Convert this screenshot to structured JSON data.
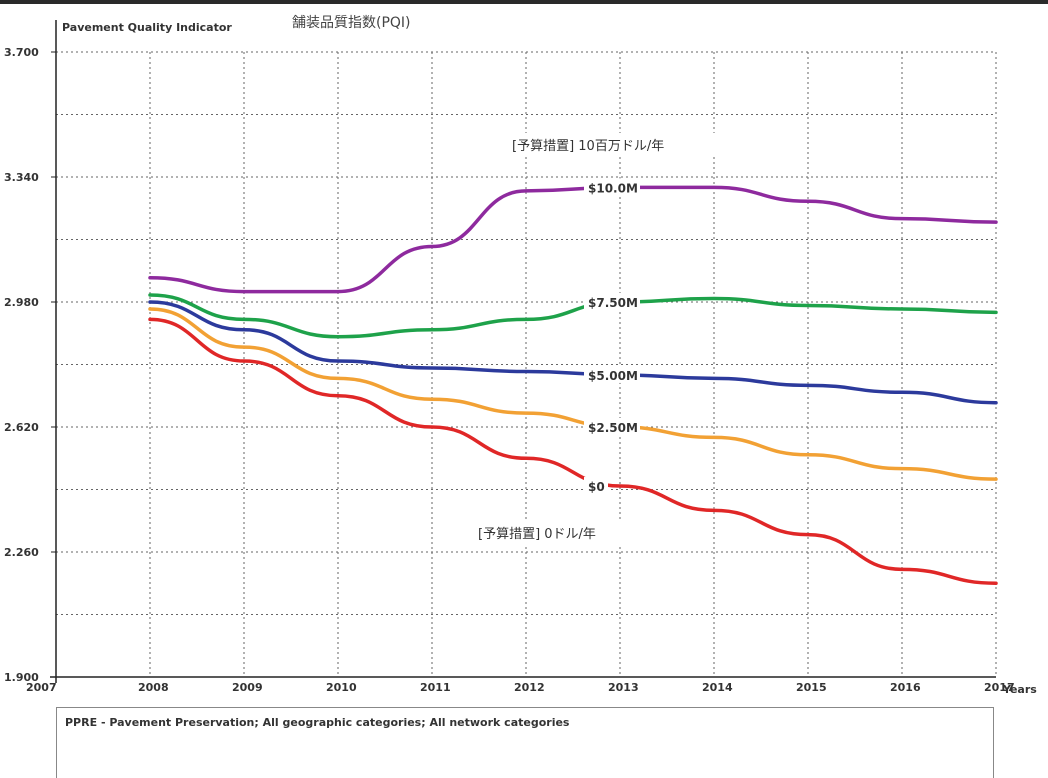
{
  "chart_data": {
    "type": "line",
    "ylabel": "Pavement Quality Indicator",
    "title": "舗装品質指数(PQI)",
    "xlabel": "Years",
    "xlim": [
      2007,
      2017
    ],
    "ylim": [
      1.9,
      3.7
    ],
    "x_ticks": [
      "2007",
      "2008",
      "2009",
      "2010",
      "2011",
      "2012",
      "2013",
      "2014",
      "2015",
      "2016",
      "2017"
    ],
    "y_ticks": [
      "1.900",
      "2.260",
      "2.620",
      "2.980",
      "3.340",
      "3.700"
    ],
    "grid": true,
    "x": [
      2008,
      2009,
      2010,
      2011,
      2012,
      2013,
      2014,
      2015,
      2016,
      2017
    ],
    "series": [
      {
        "name": "$10.0M",
        "color": "#8e2a9e",
        "values": [
          3.05,
          3.01,
          3.01,
          3.14,
          3.3,
          3.31,
          3.31,
          3.27,
          3.22,
          3.21
        ]
      },
      {
        "name": "$7.50M",
        "color": "#1ea24a",
        "values": [
          3.0,
          2.93,
          2.88,
          2.9,
          2.93,
          2.98,
          2.99,
          2.97,
          2.96,
          2.95
        ]
      },
      {
        "name": "$5.00M",
        "color": "#2c3a9c",
        "values": [
          2.98,
          2.9,
          2.81,
          2.79,
          2.78,
          2.77,
          2.76,
          2.74,
          2.72,
          2.69
        ]
      },
      {
        "name": "$2.50M",
        "color": "#f2a134",
        "values": [
          2.96,
          2.85,
          2.76,
          2.7,
          2.66,
          2.62,
          2.59,
          2.54,
          2.5,
          2.47
        ]
      },
      {
        "name": "$0",
        "color": "#e02727",
        "values": [
          2.93,
          2.81,
          2.71,
          2.62,
          2.53,
          2.45,
          2.38,
          2.31,
          2.21,
          2.17
        ]
      }
    ],
    "annotations": [
      "[予算措置]  10百万ドル/年",
      "[予算措置]  0ドル/年"
    ]
  },
  "legend_note": "PPRE - Pavement Preservation; All geographic categories; All network categories"
}
